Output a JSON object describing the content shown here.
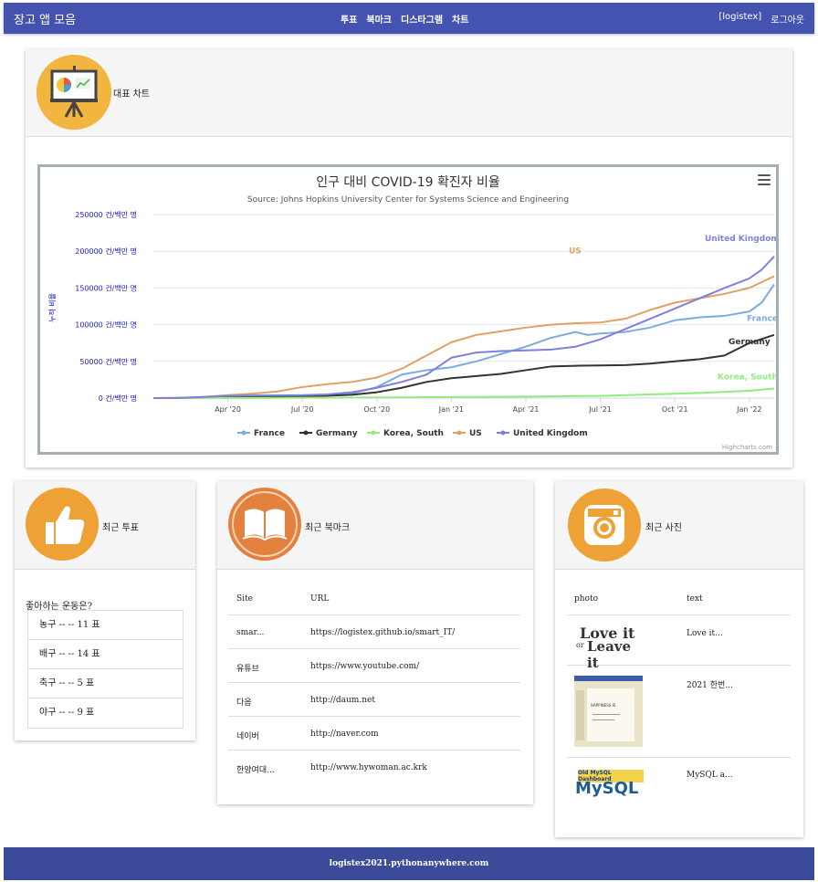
{
  "navbar": {
    "brand": "장고 앱 모음",
    "links": [
      "투표",
      "북마크",
      "디스타그램",
      "차트"
    ],
    "user": "[logistex]",
    "logout": "로그아웃"
  },
  "chart_card": {
    "title": "대표 차트"
  },
  "chart_data": {
    "type": "line",
    "title": "인구 대비 COVID-19 확진자 비율",
    "subtitle": "Source: Johns Hopkins University Center for Systems Science and Engineering",
    "ylabel": "누적 비율",
    "yticks": [
      "0 건/백만 명",
      "50000 건/백만 명",
      "100000 건/백만 명",
      "150000 건/백만 명",
      "200000 건/백만 명",
      "250000 건/백만 명"
    ],
    "xticks": [
      "Apr '20",
      "Jul '20",
      "Oct '20",
      "Jan '21",
      "Apr '21",
      "Jul '21",
      "Oct '21",
      "Jan '22"
    ],
    "ylim": [
      0,
      250000
    ],
    "x_unit": "months since Jan 2020",
    "series": [
      {
        "name": "France",
        "color": "#7cabe0",
        "x": [
          0,
          1,
          2,
          3,
          4,
          5,
          6,
          7,
          8,
          9,
          10,
          11,
          12,
          13,
          14,
          15,
          16,
          17,
          17.5,
          18,
          19,
          20,
          21,
          22,
          23,
          24,
          24.5,
          25
        ],
        "values": [
          0,
          200,
          1000,
          2200,
          2600,
          2800,
          3000,
          4000,
          6000,
          15000,
          32000,
          38000,
          42000,
          50000,
          60000,
          70000,
          82000,
          90000,
          86000,
          88000,
          90000,
          96000,
          106000,
          110000,
          112000,
          118000,
          130000,
          155000
        ]
      },
      {
        "name": "Germany",
        "color": "#333333",
        "x": [
          0,
          1,
          2,
          3,
          4,
          5,
          6,
          7,
          8,
          9,
          10,
          11,
          12,
          13,
          14,
          15,
          16,
          17,
          18,
          19,
          20,
          21,
          22,
          23,
          24,
          25
        ],
        "values": [
          0,
          100,
          700,
          1800,
          2200,
          2400,
          2700,
          3200,
          4500,
          8000,
          14000,
          22000,
          27000,
          30000,
          33000,
          38000,
          43000,
          44000,
          44500,
          45000,
          47000,
          50000,
          53000,
          58000,
          75000,
          86000
        ]
      },
      {
        "name": "Korea, South",
        "color": "#90ed7d",
        "x": [
          0,
          3,
          6,
          9,
          12,
          15,
          18,
          20,
          22,
          24,
          25
        ],
        "values": [
          0,
          200,
          400,
          800,
          1400,
          2000,
          3000,
          5000,
          7000,
          10000,
          13000
        ]
      },
      {
        "name": "US",
        "color": "#e3a063",
        "x": [
          0,
          1,
          2,
          3,
          4,
          5,
          6,
          7,
          8,
          9,
          10,
          11,
          12,
          13,
          14,
          15,
          16,
          17,
          18,
          19,
          20,
          21,
          22,
          23,
          24,
          25
        ],
        "values": [
          0,
          200,
          1500,
          4000,
          6000,
          9000,
          15000,
          19000,
          22000,
          28000,
          40000,
          58000,
          76000,
          86000,
          91000,
          96000,
          100000,
          102000,
          103000,
          108000,
          120000,
          130000,
          136000,
          142000,
          150000,
          166000
        ]
      },
      {
        "name": "United Kingdom",
        "color": "#7f7fe0",
        "x": [
          0,
          1,
          2,
          3,
          4,
          5,
          6,
          7,
          8,
          9,
          10,
          11,
          12,
          13,
          14,
          15,
          16,
          17,
          18,
          19,
          20,
          21,
          22,
          23,
          24,
          24.5,
          25
        ],
        "values": [
          0,
          200,
          1500,
          3000,
          3500,
          3800,
          4000,
          5000,
          8000,
          14000,
          22000,
          32000,
          55000,
          62000,
          64000,
          65000,
          66000,
          70000,
          80000,
          94000,
          108000,
          122000,
          136000,
          150000,
          163000,
          175000,
          193000
        ]
      }
    ]
  },
  "poll_card": {
    "title": "최근 투표",
    "question": "좋아하는 운동은?",
    "choices": [
      "농구 -- -- 11 표",
      "배구 -- -- 14 표",
      "축구 -- -- 5 표",
      "야구 -- -- 9 표"
    ]
  },
  "bookmark_card": {
    "title": "최근 북마크",
    "columns": [
      "Site",
      "URL"
    ],
    "rows": [
      [
        "smar...",
        "https://logistex.github.io/smart_IT/"
      ],
      [
        "유튜브",
        "https://www.youtube.com/"
      ],
      [
        "다음",
        "http://daum.net"
      ],
      [
        "네이버",
        "http://naver.com"
      ],
      [
        "한양여대...",
        "http://www.hywoman.ac.krk"
      ]
    ]
  },
  "photo_card": {
    "title": "최근 사진",
    "columns": [
      "photo",
      "text"
    ],
    "rows": [
      {
        "text": "Love it..."
      },
      {
        "text": "2021 한번..."
      },
      {
        "text": "MySQL a..."
      }
    ],
    "thumb1": {
      "line1": "Love it",
      "or": "or",
      "line2": "Leave it"
    },
    "thumb2": {
      "line": "HAPPINESS IS"
    },
    "thumb3": {
      "top": "Old MySQL Dashboard",
      "word": "MySQL"
    }
  },
  "footer": {
    "text": "logistex2021.pythonanywhere.com"
  },
  "colors": {
    "navbar": "#4453b0",
    "footer": "#3c4a9a",
    "icon_bg": "#f2b640",
    "icon_orange": "#eea236"
  }
}
